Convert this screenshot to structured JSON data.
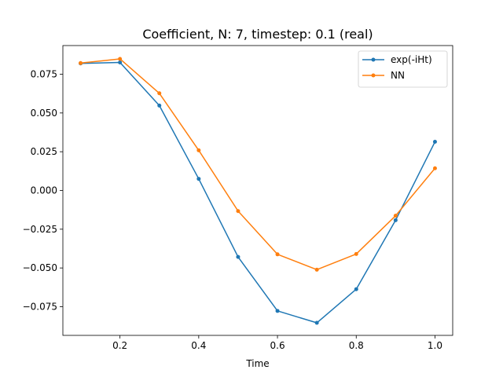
{
  "chart_data": {
    "type": "line",
    "title": "Coefficient, N: 7, timestep: 0.1 (real)",
    "xlabel": "Time",
    "ylabel": "",
    "xlim": [
      0.055,
      1.045
    ],
    "ylim": [
      -0.0935,
      0.0935
    ],
    "xticks": [
      0.2,
      0.4,
      0.6,
      0.8,
      1.0
    ],
    "xtick_labels": [
      "0.2",
      "0.4",
      "0.6",
      "0.8",
      "1.0"
    ],
    "yticks": [
      -0.075,
      -0.05,
      -0.025,
      0.0,
      0.025,
      0.05,
      0.075
    ],
    "ytick_labels": [
      "−0.075",
      "−0.050",
      "−0.025",
      "0.000",
      "0.025",
      "0.050",
      "0.075"
    ],
    "grid": false,
    "legend_position": "top-right",
    "x": [
      0.1,
      0.2,
      0.3,
      0.4,
      0.5,
      0.6,
      0.7,
      0.8,
      0.9,
      1.0
    ],
    "series": [
      {
        "name": "exp(-iHt)",
        "color": "#1f77b4",
        "values": [
          0.082,
          0.0826,
          0.0548,
          0.0075,
          -0.0429,
          -0.0777,
          -0.0854,
          -0.0637,
          -0.0192,
          0.0314
        ]
      },
      {
        "name": "NN",
        "color": "#ff7f0e",
        "values": [
          0.0822,
          0.0849,
          0.0627,
          0.0259,
          -0.0133,
          -0.0412,
          -0.0511,
          -0.041,
          -0.0163,
          0.0143
        ]
      }
    ]
  }
}
